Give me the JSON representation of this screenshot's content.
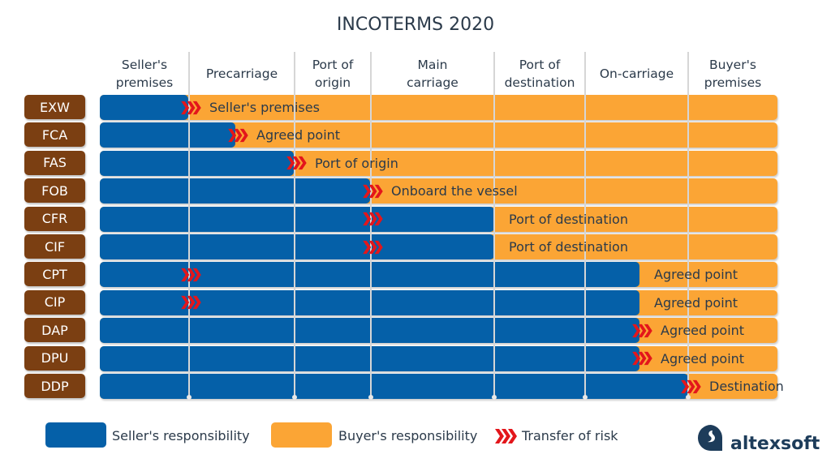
{
  "title": "INCOTERMS 2020",
  "stages": [
    "Seller's premises",
    "Precarriage",
    "Port of origin",
    "Main carriage",
    "Port of destination",
    "On-carriage",
    "Buyer's premises"
  ],
  "rows": [
    {
      "term": "EXW",
      "seller_until": "seller-premises",
      "risk_at": "seller-premises",
      "point": "Seller's premises"
    },
    {
      "term": "FCA",
      "seller_until": "precarriage",
      "risk_at": "precarriage",
      "point": "Agreed point"
    },
    {
      "term": "FAS",
      "seller_until": "port-of-origin-start",
      "risk_at": "port-of-origin-start",
      "point": "Port of origin"
    },
    {
      "term": "FOB",
      "seller_until": "port-of-origin",
      "risk_at": "port-of-origin",
      "point": "Onboard the vessel"
    },
    {
      "term": "CFR",
      "seller_until": "port-of-destination-start",
      "risk_at": "port-of-origin",
      "point": "Port of destination"
    },
    {
      "term": "CIF",
      "seller_until": "port-of-destination-start",
      "risk_at": "port-of-origin",
      "point": "Port of destination"
    },
    {
      "term": "CPT",
      "seller_until": "on-carriage",
      "risk_at": "seller-premises",
      "point": "Agreed point"
    },
    {
      "term": "CIP",
      "seller_until": "on-carriage",
      "risk_at": "seller-premises",
      "point": "Agreed point"
    },
    {
      "term": "DAP",
      "seller_until": "on-carriage",
      "risk_at": "on-carriage",
      "point": "Agreed point"
    },
    {
      "term": "DPU",
      "seller_until": "on-carriage",
      "risk_at": "on-carriage",
      "point": "Agreed point"
    },
    {
      "term": "DDP",
      "seller_until": "buyer-premises",
      "risk_at": "buyer-premises",
      "point": "Destination"
    }
  ],
  "legend": {
    "seller": "Seller's responsibility",
    "buyer": "Buyer's responsibility",
    "risk": "Transfer of risk"
  },
  "colors": {
    "seller": "#0560a8",
    "buyer": "#fba535",
    "term": "#7b3f12",
    "risk": "#e3161b"
  },
  "logo": "altexsoft"
}
